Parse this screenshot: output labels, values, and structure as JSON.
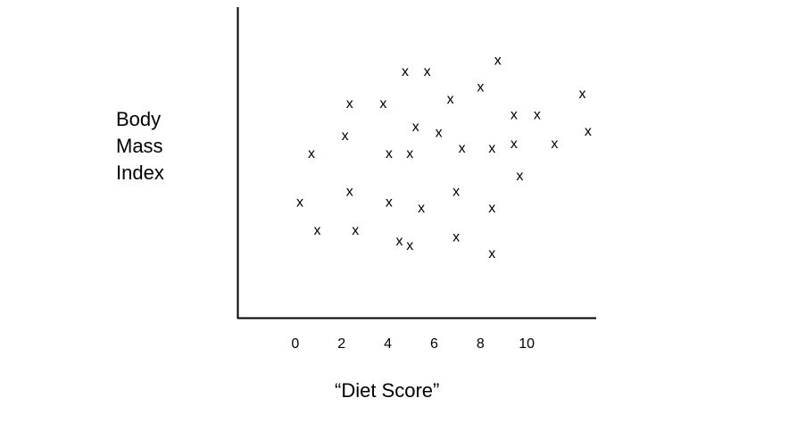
{
  "chart_data": {
    "type": "scatter",
    "title": "",
    "xlabel": "“Diet Score”",
    "ylabel_lines": [
      "Body",
      "Mass",
      "Index"
    ],
    "marker": "x",
    "x_ticks": [
      "0",
      "2",
      "4",
      "6",
      "8",
      "10"
    ],
    "xlim": [
      -2.5,
      13
    ],
    "ylim": [
      0,
      28
    ],
    "grid": false,
    "points": [
      {
        "x": 0.2,
        "y": 10.4
      },
      {
        "x": 0.7,
        "y": 14.8
      },
      {
        "x": 0.95,
        "y": 7.9
      },
      {
        "x": 2.15,
        "y": 16.4
      },
      {
        "x": 2.35,
        "y": 19.3
      },
      {
        "x": 2.35,
        "y": 11.4
      },
      {
        "x": 2.6,
        "y": 7.9
      },
      {
        "x": 3.8,
        "y": 19.3
      },
      {
        "x": 4.05,
        "y": 14.8
      },
      {
        "x": 4.05,
        "y": 10.4
      },
      {
        "x": 4.5,
        "y": 6.9
      },
      {
        "x": 4.75,
        "y": 22.2
      },
      {
        "x": 4.95,
        "y": 14.8
      },
      {
        "x": 4.95,
        "y": 6.5
      },
      {
        "x": 5.2,
        "y": 17.2
      },
      {
        "x": 5.45,
        "y": 9.9
      },
      {
        "x": 5.7,
        "y": 22.2
      },
      {
        "x": 6.2,
        "y": 16.7
      },
      {
        "x": 6.7,
        "y": 19.7
      },
      {
        "x": 6.95,
        "y": 7.3
      },
      {
        "x": 6.95,
        "y": 11.4
      },
      {
        "x": 7.2,
        "y": 15.3
      },
      {
        "x": 8.0,
        "y": 20.8
      },
      {
        "x": 8.5,
        "y": 15.3
      },
      {
        "x": 8.5,
        "y": 9.9
      },
      {
        "x": 8.5,
        "y": 5.8
      },
      {
        "x": 8.75,
        "y": 23.2
      },
      {
        "x": 9.45,
        "y": 18.3
      },
      {
        "x": 9.45,
        "y": 15.7
      },
      {
        "x": 9.7,
        "y": 12.8
      },
      {
        "x": 10.45,
        "y": 18.3
      },
      {
        "x": 11.2,
        "y": 15.7
      },
      {
        "x": 12.4,
        "y": 20.2
      },
      {
        "x": 12.65,
        "y": 16.8
      }
    ]
  }
}
